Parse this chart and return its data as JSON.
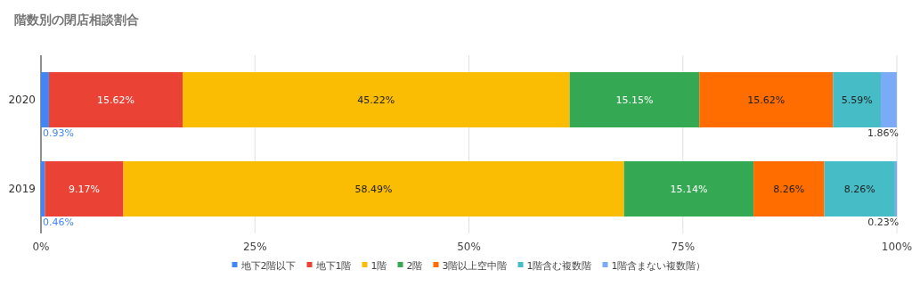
{
  "chart_data": {
    "type": "bar",
    "title": "階数別の閉店相談割合",
    "orientation": "horizontal",
    "stacked": true,
    "categories": [
      "2020",
      "2019"
    ],
    "series": [
      {
        "name": "地下2階以下",
        "color": "#4285f4",
        "values": [
          0.93,
          0.46
        ],
        "value_labels": [
          "0.93%",
          "0.46%"
        ]
      },
      {
        "name": "地下1階",
        "color": "#ea4335",
        "values": [
          15.62,
          9.17
        ],
        "value_labels": [
          "15.62%",
          "9.17%"
        ]
      },
      {
        "name": "1階",
        "color": "#fbbc04",
        "values": [
          45.22,
          58.49
        ],
        "value_labels": [
          "45.22%",
          "58.49%"
        ]
      },
      {
        "name": "2階",
        "color": "#34a853",
        "values": [
          15.15,
          15.14
        ],
        "value_labels": [
          "15.15%",
          "15.14%"
        ]
      },
      {
        "name": "3階以上空中階",
        "color": "#ff6d01",
        "values": [
          15.62,
          8.26
        ],
        "value_labels": [
          "15.62%",
          "8.26%"
        ]
      },
      {
        "name": "1階含む複数階",
        "color": "#46bdc6",
        "values": [
          5.59,
          8.26
        ],
        "value_labels": [
          "5.59%",
          "8.26%"
        ]
      },
      {
        "name": "1階含まない複数階）",
        "color": "#7baaf7",
        "values": [
          1.86,
          0.23
        ],
        "value_labels": [
          "1.86%",
          "0.23%"
        ]
      }
    ],
    "xlim": [
      0,
      100
    ],
    "xticks": [
      {
        "value": 0,
        "label": "0%"
      },
      {
        "value": 25,
        "label": "25%"
      },
      {
        "value": 50,
        "label": "50%"
      },
      {
        "value": 75,
        "label": "75%"
      },
      {
        "value": 100,
        "label": "100%"
      }
    ],
    "grid": "x",
    "legend": "bottom"
  }
}
